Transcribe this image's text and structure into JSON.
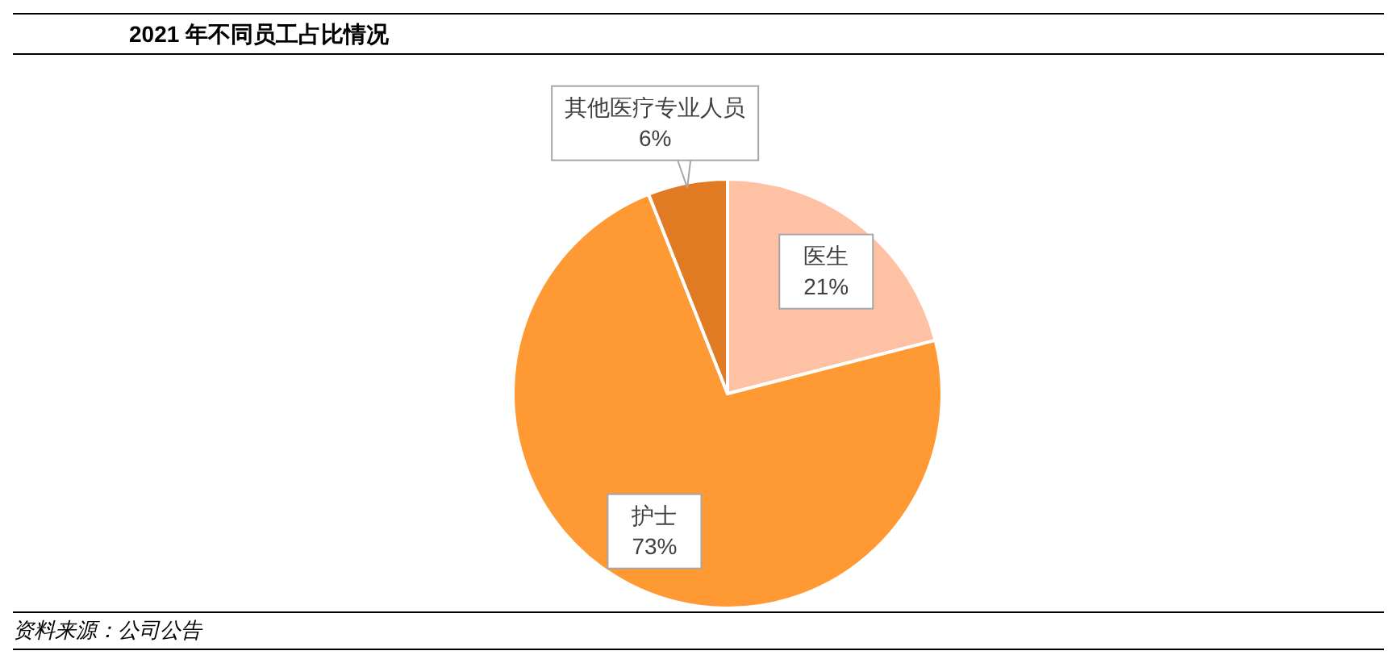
{
  "chart_data": {
    "type": "pie",
    "title": "2021 年不同员工占比情况",
    "annotations": [
      "资料来源：公司公告"
    ],
    "categories": [
      "医生",
      "护士",
      "其他医疗专业人员"
    ],
    "values": [
      21,
      73,
      6
    ],
    "value_labels": [
      "21%",
      "73%",
      "6%"
    ],
    "colors": [
      "#ffc1a3",
      "#ff9933",
      "#e07b24"
    ],
    "legend": false
  }
}
